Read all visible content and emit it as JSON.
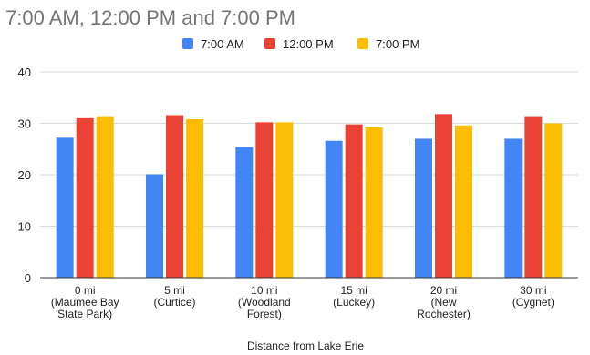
{
  "chart_data": {
    "type": "bar",
    "title": "7:00 AM, 12:00 PM and 7:00 PM",
    "xlabel": "Distance from Lake Erie",
    "ylabel": "",
    "ylim": [
      0,
      40
    ],
    "yticks": [
      0,
      10,
      20,
      30,
      40
    ],
    "grid": true,
    "legend_position": "top",
    "categories": [
      [
        "0 mi",
        "(Maumee Bay",
        "State Park)"
      ],
      [
        "5 mi",
        "(Curtice)"
      ],
      [
        "10 mi",
        "(Woodland",
        "Forest)"
      ],
      [
        "15 mi",
        "(Luckey)"
      ],
      [
        "20 mi",
        "(New",
        "Rochester)"
      ],
      [
        "30 mi",
        "(Cygnet)"
      ]
    ],
    "series": [
      {
        "name": "7:00 AM",
        "color": "#4285f4",
        "values": [
          27.2,
          20.1,
          25.4,
          26.6,
          27.0,
          27.0
        ]
      },
      {
        "name": "12:00 PM",
        "color": "#ea4335",
        "values": [
          31.0,
          31.6,
          30.2,
          29.8,
          31.8,
          31.4
        ]
      },
      {
        "name": "7:00 PM",
        "color": "#fbbc04",
        "values": [
          31.4,
          30.8,
          30.2,
          29.2,
          29.6,
          30.0
        ]
      }
    ]
  }
}
